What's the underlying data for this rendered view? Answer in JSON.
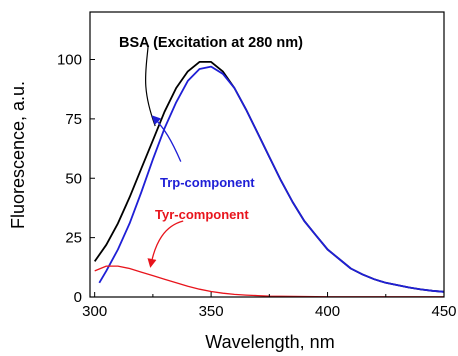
{
  "chart_data": {
    "type": "line",
    "title": "",
    "xlabel": "Wavelength, nm",
    "ylabel": "Fluorescence, a.u.",
    "xlim": [
      298,
      450
    ],
    "ylim": [
      0,
      120
    ],
    "xticks": [
      300,
      350,
      400,
      450
    ],
    "yticks": [
      0,
      25,
      50,
      75,
      100
    ],
    "grid": false,
    "legend": "none",
    "series": [
      {
        "name": "BSA (Excitation at 280 nm)",
        "color": "#000000",
        "x": [
          300,
          305,
          310,
          315,
          320,
          325,
          330,
          335,
          340,
          345,
          350,
          355,
          360,
          365,
          370,
          375,
          380,
          385,
          390,
          395,
          400,
          405,
          410,
          415,
          420,
          425,
          430,
          435,
          440,
          445,
          450
        ],
        "y": [
          15,
          22,
          31,
          42,
          54,
          66,
          78,
          88,
          95,
          99,
          99,
          95,
          88,
          79,
          69,
          59,
          49,
          40,
          32,
          26,
          20,
          16,
          12,
          9.5,
          7.5,
          6,
          5,
          4,
          3.2,
          2.6,
          2.2
        ]
      },
      {
        "name": "Trp-component",
        "color": "#1f1fd6",
        "x": [
          302,
          305,
          310,
          315,
          320,
          325,
          330,
          335,
          340,
          345,
          350,
          355,
          360,
          365,
          370,
          375,
          380,
          385,
          390,
          395,
          400,
          405,
          410,
          415,
          420,
          425,
          430,
          435,
          440,
          445,
          450
        ],
        "y": [
          6,
          11,
          20,
          31,
          44,
          58,
          71,
          82,
          91,
          96,
          97,
          94,
          88,
          79,
          69,
          59,
          49,
          40,
          32,
          26,
          20,
          16,
          12,
          9.5,
          7.5,
          6,
          5,
          4,
          3.2,
          2.6,
          2.2
        ]
      },
      {
        "name": "Tyr-component",
        "color": "#e8141c",
        "x": [
          300,
          305,
          310,
          315,
          320,
          325,
          330,
          335,
          340,
          345,
          350,
          355,
          360,
          365,
          370,
          375,
          380,
          390,
          400,
          410,
          420,
          430,
          440,
          450
        ],
        "y": [
          11,
          13,
          13,
          12,
          10.5,
          9,
          7.5,
          6,
          4.5,
          3.3,
          2.3,
          1.6,
          1.1,
          0.8,
          0.6,
          0.4,
          0.3,
          0.2,
          0.1,
          0.1,
          0.1,
          0.1,
          0.1,
          0.1
        ]
      }
    ],
    "annotations": [
      {
        "text": "BSA (Excitation at 280 nm)",
        "color": "#000000"
      },
      {
        "text": "Trp-component",
        "color": "#1f1fd6"
      },
      {
        "text": "Tyr-component",
        "color": "#e8141c"
      }
    ]
  }
}
